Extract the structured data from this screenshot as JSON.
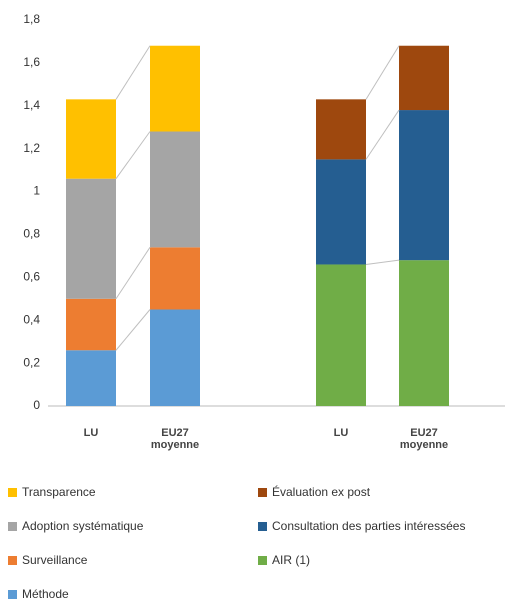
{
  "chart_data": {
    "type": "stacked_bar",
    "categories": [
      "LU",
      "EU27 moyenne",
      "LU",
      "EU27 moyenne"
    ],
    "series": [
      {
        "name": "Transparence",
        "color": "#ffc000",
        "values": [
          0.37,
          0.4,
          null,
          null
        ]
      },
      {
        "name": "Adoption systématique",
        "color": "#a5a5a5",
        "values": [
          0.56,
          0.54,
          null,
          null
        ]
      },
      {
        "name": "Surveillance",
        "color": "#ed7d31",
        "values": [
          0.24,
          0.29,
          null,
          null
        ]
      },
      {
        "name": "Méthode",
        "color": "#5b9bd5",
        "values": [
          0.26,
          0.45,
          null,
          null
        ]
      },
      {
        "name": "Évaluation ex post",
        "color": "#9e480e",
        "values": [
          null,
          null,
          0.28,
          0.3
        ]
      },
      {
        "name": "Consultation des parties intéressées",
        "color": "#255e91",
        "values": [
          null,
          null,
          0.49,
          0.7
        ]
      },
      {
        "name": "AIR (1)",
        "color": "#70ad47",
        "values": [
          null,
          null,
          0.66,
          0.68
        ]
      }
    ],
    "ylim": [
      0,
      1.8
    ],
    "yticks": [
      0,
      {
        "value": 0.2,
        "label": "0,2"
      },
      {
        "value": 0.4,
        "label": "0,4"
      },
      {
        "value": 0.6,
        "label": "0,6"
      },
      {
        "value": 0.8,
        "label": "0,8"
      },
      1,
      {
        "value": 1.2,
        "label": "1,2"
      },
      {
        "value": 1.4,
        "label": "1,4"
      },
      {
        "value": 1.6,
        "label": "1,6"
      },
      {
        "value": 1.8,
        "label": "1,8"
      }
    ],
    "grid": false
  }
}
